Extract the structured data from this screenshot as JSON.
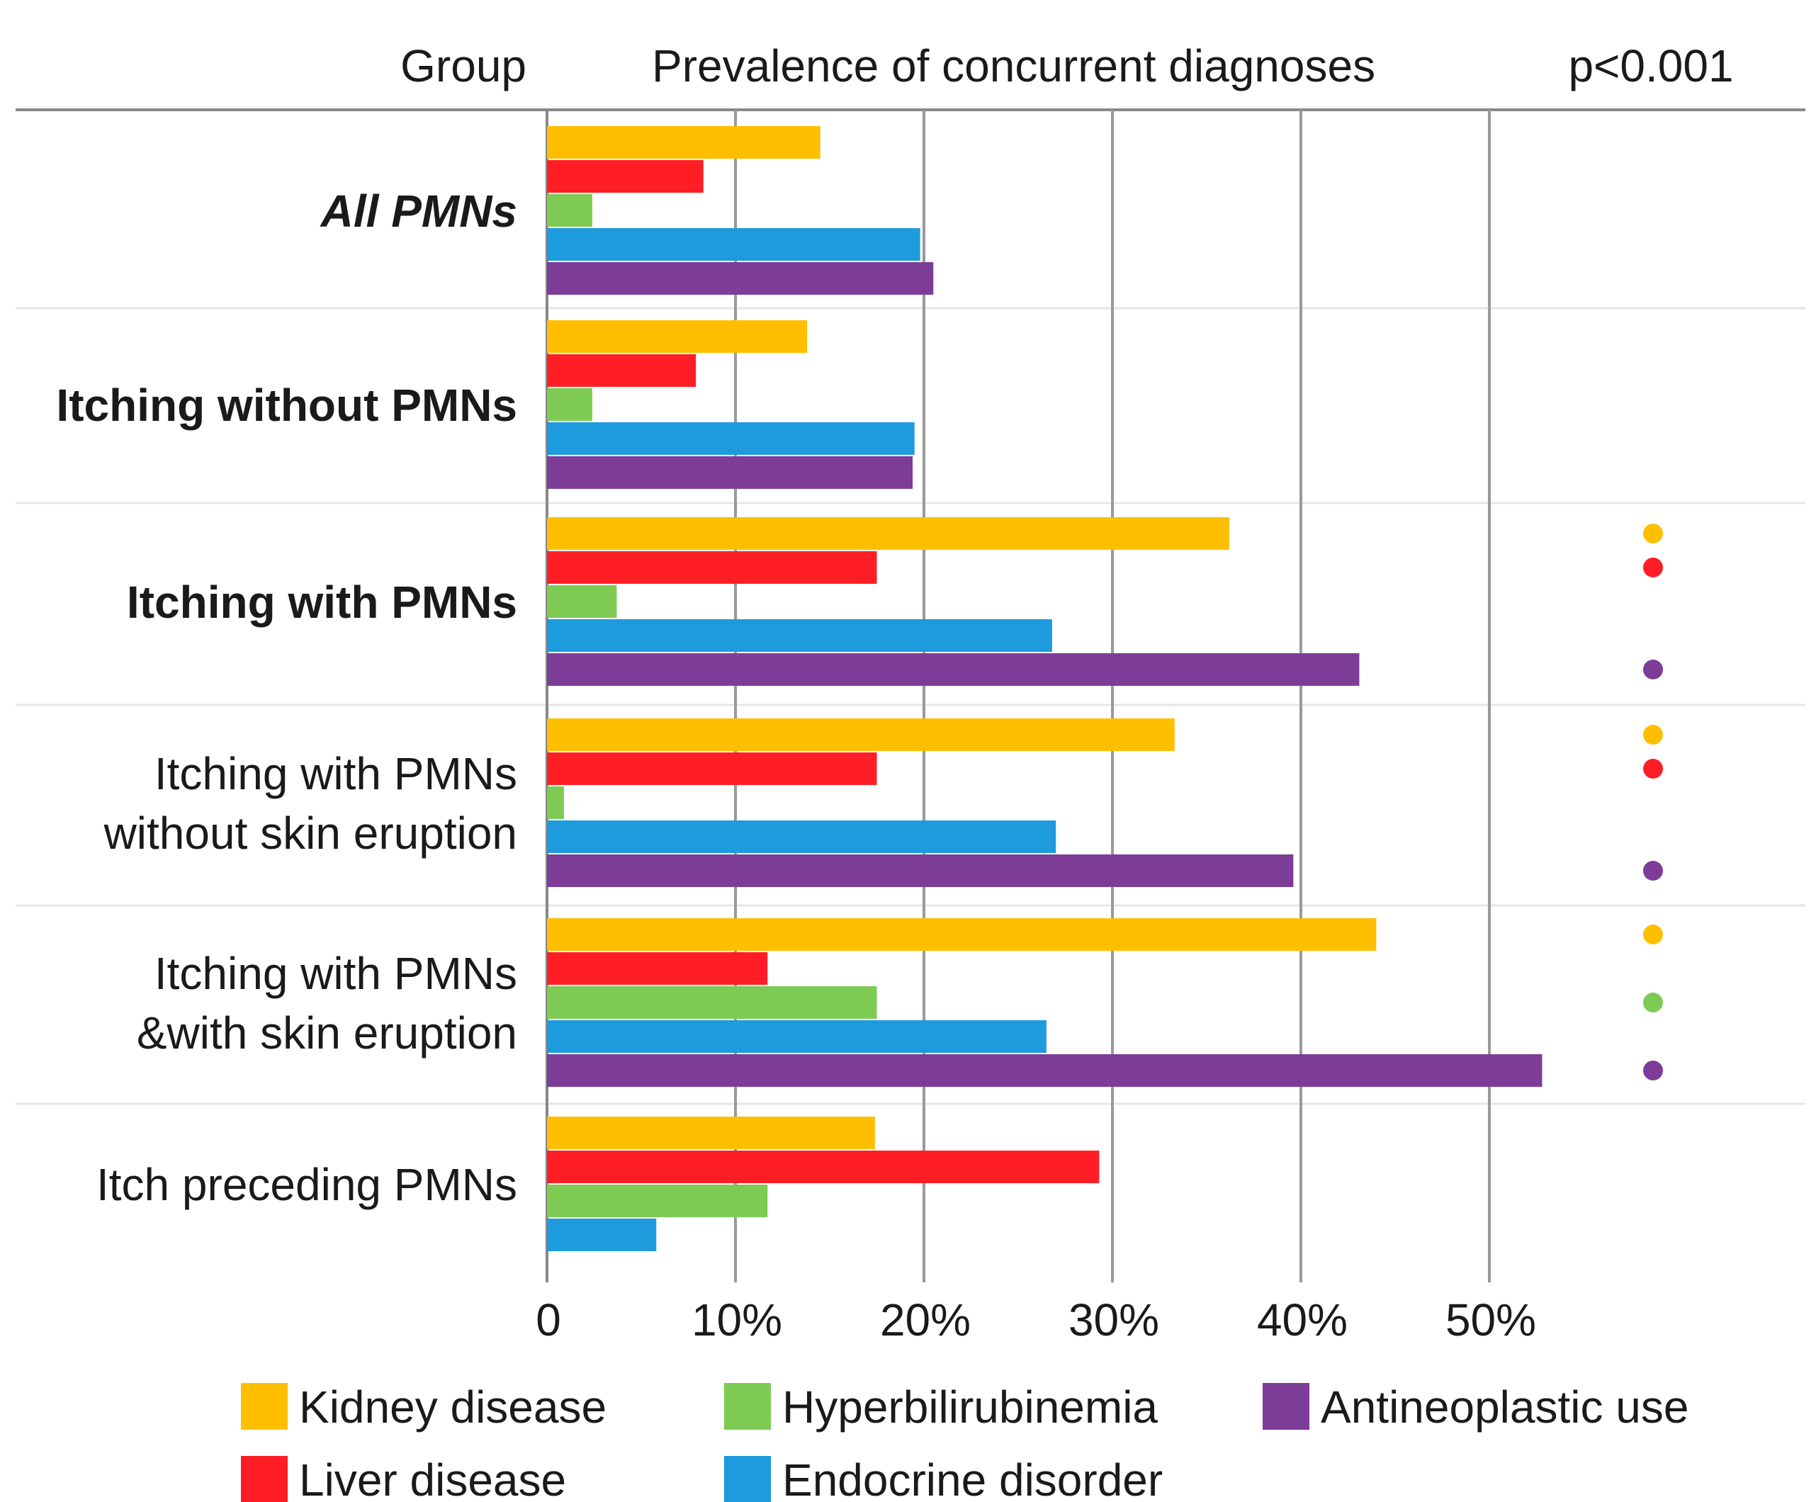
{
  "header": {
    "group_label": "Group",
    "title": "Prevalence of concurrent diagnoses",
    "pvalue_label": "p<0.001"
  },
  "colors": {
    "kidney": "#FFBF00",
    "liver": "#FF1E25",
    "hyper": "#7DCB52",
    "endo": "#1E9BDD",
    "anti": "#7D3C98",
    "grid": "#999999",
    "divider": "#e6e6e6",
    "axis": "#888888"
  },
  "chart_data": {
    "type": "bar",
    "orientation": "horizontal",
    "title": "Prevalence of concurrent diagnoses",
    "xlabel": "",
    "ylabel": "Group",
    "xlim": [
      0,
      55
    ],
    "x_ticks": [
      0,
      10,
      20,
      30,
      40,
      50
    ],
    "x_tick_labels": [
      "0",
      "10%",
      "20%",
      "30%",
      "40%",
      "50%"
    ],
    "grid": true,
    "legend_position": "bottom",
    "series": [
      {
        "key": "kidney",
        "name": "Kidney disease",
        "color": "#FFBF00"
      },
      {
        "key": "liver",
        "name": "Liver disease",
        "color": "#FF1E25"
      },
      {
        "key": "hyper",
        "name": "Hyperbilirubinemia",
        "color": "#7DCB52"
      },
      {
        "key": "endo",
        "name": "Endocrine disorder",
        "color": "#1E9BDD"
      },
      {
        "key": "anti",
        "name": "Antineoplastic use",
        "color": "#7D3C98"
      }
    ],
    "groups": [
      {
        "lines": [
          "All PMNs"
        ],
        "style": "bold-italic",
        "values": {
          "kidney": 14.5,
          "liver": 8.3,
          "hyper": 2.4,
          "endo": 19.8,
          "anti": 20.5
        },
        "significant": []
      },
      {
        "lines": [
          "Itching without PMNs"
        ],
        "style": "bold",
        "values": {
          "kidney": 13.8,
          "liver": 7.9,
          "hyper": 2.4,
          "endo": 19.5,
          "anti": 19.4
        },
        "significant": []
      },
      {
        "lines": [
          "Itching with PMNs"
        ],
        "style": "bold",
        "values": {
          "kidney": 36.2,
          "liver": 17.5,
          "hyper": 3.7,
          "endo": 26.8,
          "anti": 43.1
        },
        "significant": [
          "kidney",
          "liver",
          "anti"
        ]
      },
      {
        "lines": [
          "Itching with PMNs",
          "without skin eruption"
        ],
        "style": "normal",
        "values": {
          "kidney": 33.3,
          "liver": 17.5,
          "hyper": 0.9,
          "endo": 27.0,
          "anti": 39.6
        },
        "significant": [
          "kidney",
          "liver",
          "anti"
        ]
      },
      {
        "lines": [
          "Itching with PMNs",
          "&with skin eruption"
        ],
        "style": "normal",
        "values": {
          "kidney": 44.0,
          "liver": 11.7,
          "hyper": 17.5,
          "endo": 26.5,
          "anti": 52.8
        },
        "significant": [
          "kidney",
          "hyper",
          "anti"
        ]
      },
      {
        "lines": [
          "Itch preceding PMNs"
        ],
        "style": "normal",
        "values": {
          "kidney": 17.4,
          "liver": 29.3,
          "hyper": 11.7,
          "endo": 5.8
        },
        "significant": []
      }
    ]
  }
}
